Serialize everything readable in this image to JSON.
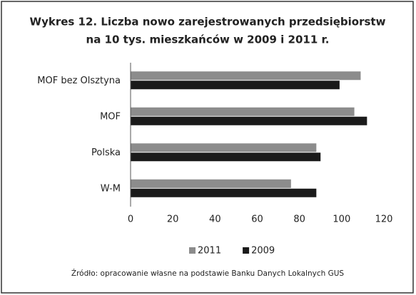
{
  "chart_data": {
    "type": "hbar",
    "title": [
      "Wykres 12. Liczba nowo zarejestrowanych przedsiębiorstw",
      "na 10 tys. mieszkańców w 2009 i 2011 r."
    ],
    "categories": [
      "MOF bez Olsztyna",
      "MOF",
      "Polska",
      "W-M"
    ],
    "series": [
      {
        "name": "2011",
        "color": "#8c8c8c",
        "values": [
          109,
          106,
          88,
          76
        ]
      },
      {
        "name": "2009",
        "color": "#1a1a1a",
        "values": [
          99,
          112,
          90,
          88
        ]
      }
    ],
    "xlim": [
      0,
      120
    ],
    "xticks": [
      0,
      20,
      40,
      60,
      80,
      100,
      120
    ],
    "grid": false,
    "legend": "bottom",
    "source": "Źródło: opracowanie własne na podstawie Banku Danych Lokalnych GUS"
  }
}
